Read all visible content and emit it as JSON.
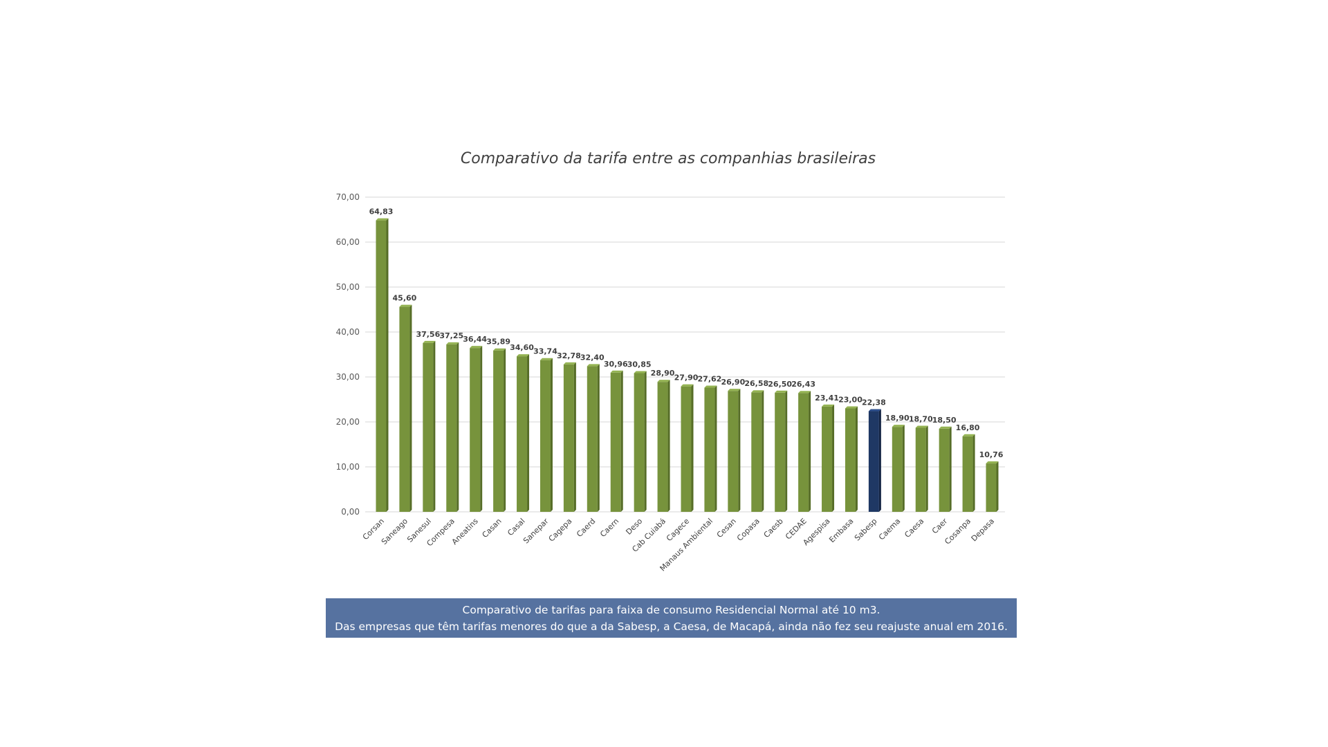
{
  "chart_data": {
    "type": "bar",
    "title": "Comparativo da tarifa entre as companhias brasileiras",
    "xlabel": "",
    "ylabel": "",
    "ylim": [
      0,
      70
    ],
    "y_ticks": [
      "0,00",
      "10,00",
      "20,00",
      "30,00",
      "40,00",
      "50,00",
      "60,00",
      "70,00"
    ],
    "grid": true,
    "categories": [
      "Corsan",
      "Saneago",
      "Sanesul",
      "Compesa",
      "Aneatins",
      "Casan",
      "Casal",
      "Sanepar",
      "Cagepa",
      "Caerd",
      "Caern",
      "Deso",
      "Cab Cuiabá",
      "Cagece",
      "Manaus Ambiental",
      "Cesan",
      "Copasa",
      "Caesb",
      "CEDAE",
      "Agespisa",
      "Embasa",
      "Sabesp",
      "Caema",
      "Caesa",
      "Caer",
      "Cosanpa",
      "Depasa"
    ],
    "values": [
      64.83,
      45.6,
      37.56,
      37.25,
      36.44,
      35.89,
      34.6,
      33.74,
      32.78,
      32.4,
      30.96,
      30.85,
      28.9,
      27.9,
      27.62,
      26.9,
      26.58,
      26.5,
      26.43,
      23.41,
      23.0,
      22.38,
      18.9,
      18.7,
      18.5,
      16.8,
      10.76
    ],
    "value_labels": [
      "64,83",
      "45,60",
      "37,56",
      "37,25",
      "36,44",
      "35,89",
      "34,60",
      "33,74",
      "32,78",
      "32,40",
      "30,96",
      "30,85",
      "28,90",
      "27,90",
      "27,62",
      "26,90",
      "26,58",
      "26,50",
      "26,43",
      "23,41",
      "23,00",
      "22,38",
      "18,90",
      "18,70",
      "18,50",
      "16,80",
      "10,76"
    ],
    "colors": {
      "default": "#77933c",
      "highlight": "#1f3864"
    },
    "highlight_category": "Sabesp"
  },
  "caption": {
    "line1": "Comparativo de tarifas para faixa de consumo Residencial Normal até 10 m3.",
    "line2": "Das empresas que têm tarifas menores do que a da Sabesp, a Caesa, de Macapá, ainda não fez seu reajuste anual em 2016."
  }
}
